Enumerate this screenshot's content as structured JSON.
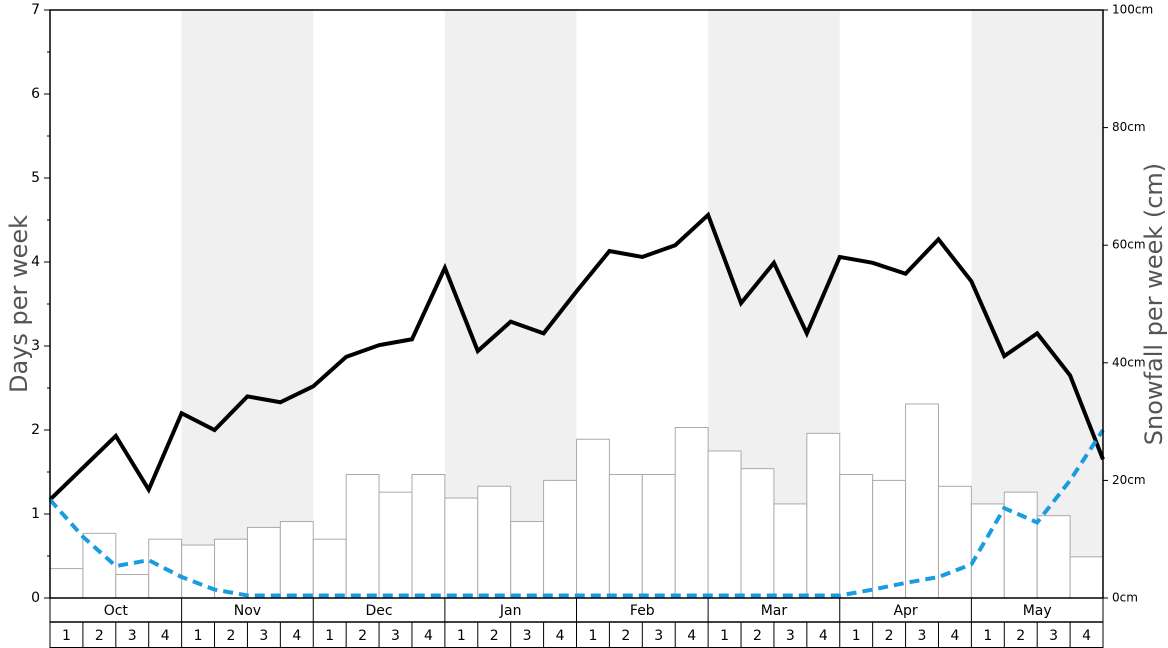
{
  "chart_data": {
    "type": "bar-line",
    "ylabel": "Days per week",
    "y2label": "Snowfall per week (cm)",
    "months": [
      "Oct",
      "Nov",
      "Dec",
      "Jan",
      "Feb",
      "Mar",
      "Apr",
      "May"
    ],
    "week_labels": [
      "1",
      "2",
      "3",
      "4"
    ],
    "shaded_months": [
      false,
      true,
      false,
      true,
      false,
      true,
      false,
      true
    ],
    "ylim": [
      0,
      7
    ],
    "yticks": [
      0,
      1,
      2,
      3,
      4,
      5,
      6,
      7
    ],
    "y2lim": [
      0,
      100
    ],
    "y2ticks": [
      {
        "value": 0,
        "label": "0cm"
      },
      {
        "value": 20,
        "label": "20cm"
      },
      {
        "value": 40,
        "label": "40cm"
      },
      {
        "value": 60,
        "label": "60cm"
      },
      {
        "value": 80,
        "label": "80cm"
      },
      {
        "value": 100,
        "label": "100cm"
      }
    ],
    "series": [
      {
        "kind": "bar",
        "axis": "y2",
        "color": "#ffffff",
        "edge": "#aaaaaa",
        "values": [
          5,
          11,
          4,
          10,
          9,
          10,
          12,
          13,
          10,
          21,
          18,
          21,
          17,
          19,
          13,
          20,
          27,
          21,
          21,
          29,
          25,
          22,
          16,
          28,
          21,
          20,
          33,
          19,
          16,
          18,
          14,
          7
        ]
      },
      {
        "kind": "line",
        "color": "#000000",
        "dashed": false,
        "values": [
          1.17,
          1.55,
          1.93,
          1.29,
          2.2,
          2.0,
          2.4,
          2.33,
          2.52,
          2.87,
          3.01,
          3.08,
          3.93,
          2.94,
          3.29,
          3.15,
          3.65,
          4.13,
          4.06,
          4.2,
          4.56,
          3.51,
          3.99,
          3.15,
          4.06,
          3.99,
          3.86,
          4.27,
          3.77,
          2.88,
          3.15,
          2.65,
          1.65
        ]
      },
      {
        "kind": "line",
        "color": "#1a9de0",
        "dashed": true,
        "values": [
          1.17,
          0.73,
          0.38,
          0.45,
          0.25,
          0.1,
          0.03,
          0.03,
          0.03,
          0.03,
          0.03,
          0.03,
          0.03,
          0.03,
          0.03,
          0.03,
          0.03,
          0.03,
          0.03,
          0.03,
          0.03,
          0.03,
          0.03,
          0.03,
          0.03,
          0.1,
          0.18,
          0.25,
          0.4,
          1.07,
          0.9,
          1.4,
          2.0
        ]
      }
    ]
  }
}
